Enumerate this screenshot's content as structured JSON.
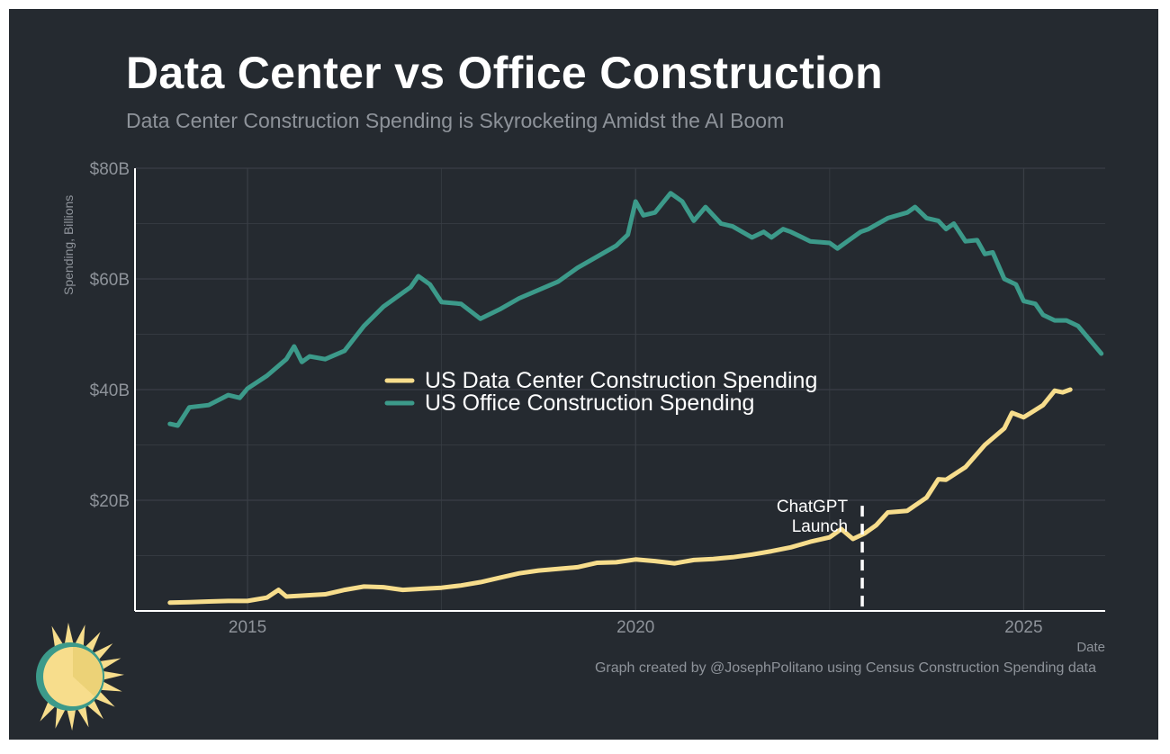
{
  "title": "Data Center vs Office Construction",
  "subtitle": "Data Center Construction Spending is Skyrocketing Amidst the AI Boom",
  "caption": "Graph created by @JosephPolitano using Census Construction Spending data",
  "colors": {
    "background": "#252a30",
    "data_center": "#f7dd8c",
    "office": "#3c9a8a",
    "grid": "#3a3f46",
    "text_muted": "#8e939a"
  },
  "logo": {
    "icon": "sun-icon"
  },
  "chart_data": {
    "type": "line",
    "xlabel": "Date",
    "ylabel": "Spending, Billions",
    "xlim": [
      2013.55,
      2026.05
    ],
    "ylim": [
      0,
      80
    ],
    "x_ticks": [
      2015,
      2020,
      2025
    ],
    "x_tick_labels": [
      "2015",
      "2020",
      "2025"
    ],
    "y_ticks": [
      20,
      40,
      60,
      80
    ],
    "y_tick_labels": [
      "$20B",
      "$40B",
      "$60B",
      "$80B"
    ],
    "grid": true,
    "legend_position": "center",
    "annotation": {
      "x": 2022.92,
      "text_line1": "ChatGPT",
      "text_line2": "Launch"
    },
    "series": [
      {
        "name": "US Data Center Construction Spending",
        "color": "#f7dd8c",
        "points": [
          [
            2014.0,
            1.5
          ],
          [
            2014.25,
            1.6
          ],
          [
            2014.5,
            1.7
          ],
          [
            2014.75,
            1.8
          ],
          [
            2015.0,
            1.8
          ],
          [
            2015.25,
            2.4
          ],
          [
            2015.4,
            3.8
          ],
          [
            2015.5,
            2.6
          ],
          [
            2015.75,
            2.8
          ],
          [
            2016.0,
            3.0
          ],
          [
            2016.25,
            3.8
          ],
          [
            2016.5,
            4.4
          ],
          [
            2016.75,
            4.3
          ],
          [
            2017.0,
            3.8
          ],
          [
            2017.25,
            4.0
          ],
          [
            2017.5,
            4.2
          ],
          [
            2017.75,
            4.6
          ],
          [
            2018.0,
            5.2
          ],
          [
            2018.25,
            6.0
          ],
          [
            2018.5,
            6.8
          ],
          [
            2018.75,
            7.3
          ],
          [
            2019.0,
            7.6
          ],
          [
            2019.25,
            7.9
          ],
          [
            2019.5,
            8.7
          ],
          [
            2019.75,
            8.8
          ],
          [
            2020.0,
            9.3
          ],
          [
            2020.25,
            9.0
          ],
          [
            2020.5,
            8.6
          ],
          [
            2020.75,
            9.2
          ],
          [
            2021.0,
            9.4
          ],
          [
            2021.25,
            9.7
          ],
          [
            2021.5,
            10.2
          ],
          [
            2021.75,
            10.8
          ],
          [
            2022.0,
            11.5
          ],
          [
            2022.25,
            12.5
          ],
          [
            2022.5,
            13.3
          ],
          [
            2022.65,
            14.8
          ],
          [
            2022.8,
            13.0
          ],
          [
            2022.95,
            14.0
          ],
          [
            2023.1,
            15.5
          ],
          [
            2023.25,
            17.8
          ],
          [
            2023.5,
            18.1
          ],
          [
            2023.75,
            20.5
          ],
          [
            2023.9,
            23.8
          ],
          [
            2024.0,
            23.7
          ],
          [
            2024.25,
            26.0
          ],
          [
            2024.5,
            30.0
          ],
          [
            2024.75,
            33.0
          ],
          [
            2024.85,
            35.8
          ],
          [
            2025.0,
            35.0
          ],
          [
            2025.25,
            37.2
          ],
          [
            2025.4,
            39.8
          ],
          [
            2025.5,
            39.5
          ],
          [
            2025.6,
            40.0
          ]
        ]
      },
      {
        "name": "US Office Construction Spending",
        "color": "#3c9a8a",
        "points": [
          [
            2014.0,
            33.8
          ],
          [
            2014.1,
            33.5
          ],
          [
            2014.25,
            36.8
          ],
          [
            2014.5,
            37.2
          ],
          [
            2014.75,
            39.0
          ],
          [
            2014.9,
            38.5
          ],
          [
            2015.0,
            40.2
          ],
          [
            2015.25,
            42.5
          ],
          [
            2015.5,
            45.5
          ],
          [
            2015.6,
            47.8
          ],
          [
            2015.7,
            45.0
          ],
          [
            2015.8,
            46.0
          ],
          [
            2016.0,
            45.5
          ],
          [
            2016.25,
            47.0
          ],
          [
            2016.5,
            51.5
          ],
          [
            2016.75,
            55.0
          ],
          [
            2017.0,
            57.5
          ],
          [
            2017.1,
            58.5
          ],
          [
            2017.2,
            60.5
          ],
          [
            2017.35,
            59.0
          ],
          [
            2017.5,
            55.8
          ],
          [
            2017.75,
            55.5
          ],
          [
            2018.0,
            52.8
          ],
          [
            2018.25,
            54.5
          ],
          [
            2018.5,
            56.5
          ],
          [
            2018.75,
            58.0
          ],
          [
            2019.0,
            59.5
          ],
          [
            2019.25,
            62.0
          ],
          [
            2019.5,
            64.0
          ],
          [
            2019.75,
            66.0
          ],
          [
            2019.9,
            68.0
          ],
          [
            2020.0,
            74.0
          ],
          [
            2020.1,
            71.5
          ],
          [
            2020.25,
            72.0
          ],
          [
            2020.45,
            75.5
          ],
          [
            2020.6,
            74.0
          ],
          [
            2020.75,
            70.5
          ],
          [
            2020.9,
            73.0
          ],
          [
            2021.1,
            70.0
          ],
          [
            2021.25,
            69.5
          ],
          [
            2021.5,
            67.5
          ],
          [
            2021.65,
            68.5
          ],
          [
            2021.75,
            67.5
          ],
          [
            2021.9,
            69.0
          ],
          [
            2022.0,
            68.5
          ],
          [
            2022.25,
            66.8
          ],
          [
            2022.5,
            66.5
          ],
          [
            2022.6,
            65.5
          ],
          [
            2022.75,
            67.0
          ],
          [
            2022.9,
            68.5
          ],
          [
            2023.0,
            69.0
          ],
          [
            2023.25,
            71.0
          ],
          [
            2023.5,
            72.0
          ],
          [
            2023.6,
            73.0
          ],
          [
            2023.75,
            71.0
          ],
          [
            2023.9,
            70.5
          ],
          [
            2024.0,
            69.0
          ],
          [
            2024.1,
            70.0
          ],
          [
            2024.25,
            66.8
          ],
          [
            2024.4,
            67.0
          ],
          [
            2024.5,
            64.5
          ],
          [
            2024.6,
            64.8
          ],
          [
            2024.75,
            60.0
          ],
          [
            2024.9,
            59.0
          ],
          [
            2025.0,
            56.0
          ],
          [
            2025.15,
            55.5
          ],
          [
            2025.25,
            53.5
          ],
          [
            2025.4,
            52.5
          ],
          [
            2025.55,
            52.5
          ],
          [
            2025.7,
            51.5
          ],
          [
            2025.85,
            49.0
          ],
          [
            2026.0,
            46.5
          ]
        ]
      }
    ]
  }
}
